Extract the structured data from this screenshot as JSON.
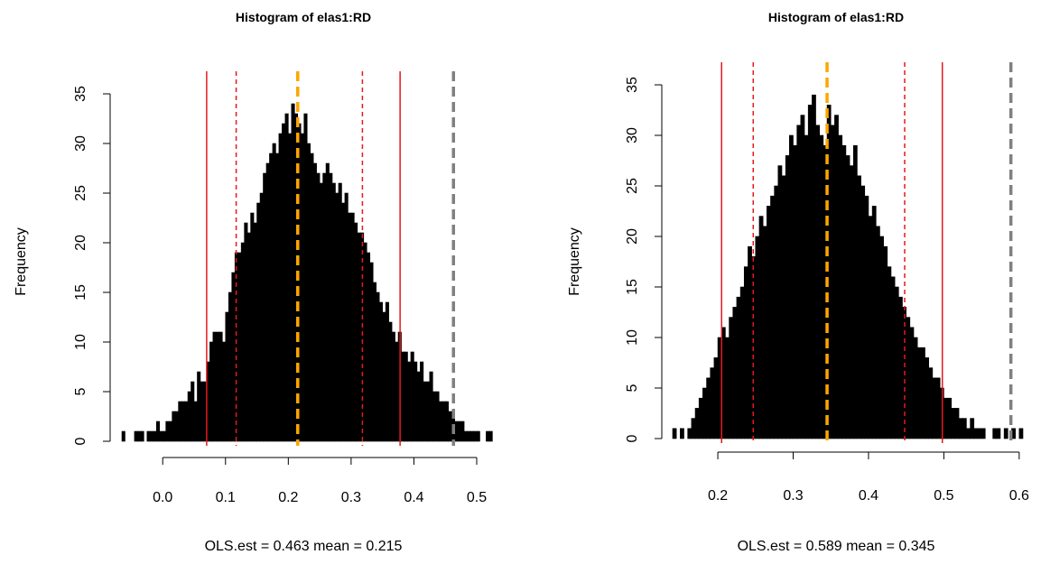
{
  "chart_data": [
    {
      "type": "bar",
      "title": "Histogram of  elas1:RD",
      "xlabel": "OLS.est =  0.463 mean =  0.215",
      "ylabel": "Frequency",
      "xlim": [
        -0.065,
        0.5
      ],
      "ylim": [
        0,
        35
      ],
      "x_ticks": [
        0.0,
        0.1,
        0.2,
        0.3,
        0.4,
        0.5
      ],
      "x_tick_labels": [
        "0.0",
        "0.1",
        "0.2",
        "0.3",
        "0.4",
        "0.5"
      ],
      "y_ticks": [
        0,
        5,
        10,
        15,
        20,
        25,
        30,
        35
      ],
      "y_tick_labels": [
        "0",
        "5",
        "10",
        "15",
        "20",
        "25",
        "30",
        "35"
      ],
      "bin_width": 0.005,
      "bins_start": -0.065,
      "frequencies": [
        1,
        0,
        0,
        0,
        1,
        1,
        1,
        0,
        1,
        1,
        1,
        2,
        1,
        1,
        2,
        2,
        3,
        3,
        4,
        4,
        4,
        5,
        6,
        4,
        7,
        6,
        6,
        8,
        10,
        11,
        11,
        11,
        10,
        13,
        15,
        17,
        19,
        19,
        20,
        22,
        21,
        23,
        22,
        24,
        25,
        27,
        28,
        29,
        30,
        29,
        31,
        32,
        33,
        31,
        34,
        33,
        32,
        31,
        33,
        30,
        29,
        28,
        27,
        26,
        27,
        28,
        27,
        26,
        25,
        26,
        24,
        25,
        23,
        23,
        22,
        21,
        21,
        20,
        19,
        18,
        16,
        15,
        14,
        13,
        14,
        12,
        11,
        10,
        11,
        9,
        9,
        8,
        9,
        8,
        7,
        8,
        6,
        6,
        7,
        5,
        5,
        4,
        4,
        4,
        3,
        3,
        2,
        2,
        2,
        1,
        1,
        1,
        1,
        1,
        0,
        0,
        1,
        1
      ],
      "vlines": [
        {
          "x": 0.07,
          "color": "#e41a1c",
          "style": "solid"
        },
        {
          "x": 0.117,
          "color": "#e41a1c",
          "style": "dashed"
        },
        {
          "x": 0.215,
          "color": "#ffa500",
          "style": "dashed-thick"
        },
        {
          "x": 0.318,
          "color": "#e41a1c",
          "style": "dashed"
        },
        {
          "x": 0.378,
          "color": "#e41a1c",
          "style": "solid"
        },
        {
          "x": 0.463,
          "color": "#808080",
          "style": "dashed-thick"
        }
      ]
    },
    {
      "type": "bar",
      "title": "Histogram of  elas1:RD",
      "xlabel": "OLS.est =  0.589 mean =  0.345",
      "ylabel": "Frequency",
      "xlim": [
        0.14,
        0.605
      ],
      "ylim": [
        0,
        35
      ],
      "x_ticks": [
        0.2,
        0.3,
        0.4,
        0.5,
        0.6
      ],
      "x_tick_labels": [
        "0.2",
        "0.3",
        "0.4",
        "0.5",
        "0.6"
      ],
      "y_ticks": [
        0,
        5,
        10,
        15,
        20,
        25,
        30,
        35
      ],
      "y_tick_labels": [
        "0",
        "5",
        "10",
        "15",
        "20",
        "25",
        "30",
        "35"
      ],
      "bin_width": 0.005,
      "bins_start": 0.14,
      "frequencies": [
        1,
        0,
        1,
        0,
        1,
        2,
        3,
        4,
        5,
        6,
        7,
        8,
        10,
        11,
        10,
        12,
        13,
        14,
        15,
        17,
        19,
        18,
        20,
        22,
        21,
        23,
        24,
        25,
        27,
        26,
        28,
        30,
        29,
        31,
        32,
        30,
        33,
        34,
        31,
        30,
        29,
        33,
        31,
        32,
        30,
        29,
        28,
        27,
        29,
        26,
        25,
        24,
        22,
        23,
        21,
        20,
        19,
        17,
        16,
        15,
        14,
        13,
        12,
        11,
        10,
        9,
        9,
        8,
        7,
        6,
        6,
        5,
        4,
        4,
        3,
        3,
        2,
        2,
        1,
        2,
        1,
        1,
        1,
        0,
        0,
        1,
        1,
        0,
        1,
        0,
        1,
        0,
        1
      ],
      "vlines": [
        {
          "x": 0.205,
          "color": "#e41a1c",
          "style": "solid"
        },
        {
          "x": 0.247,
          "color": "#e41a1c",
          "style": "dashed"
        },
        {
          "x": 0.345,
          "color": "#ffa500",
          "style": "dashed-thick"
        },
        {
          "x": 0.448,
          "color": "#e41a1c",
          "style": "dashed"
        },
        {
          "x": 0.498,
          "color": "#e41a1c",
          "style": "solid"
        },
        {
          "x": 0.589,
          "color": "#808080",
          "style": "dashed-thick"
        }
      ]
    }
  ]
}
